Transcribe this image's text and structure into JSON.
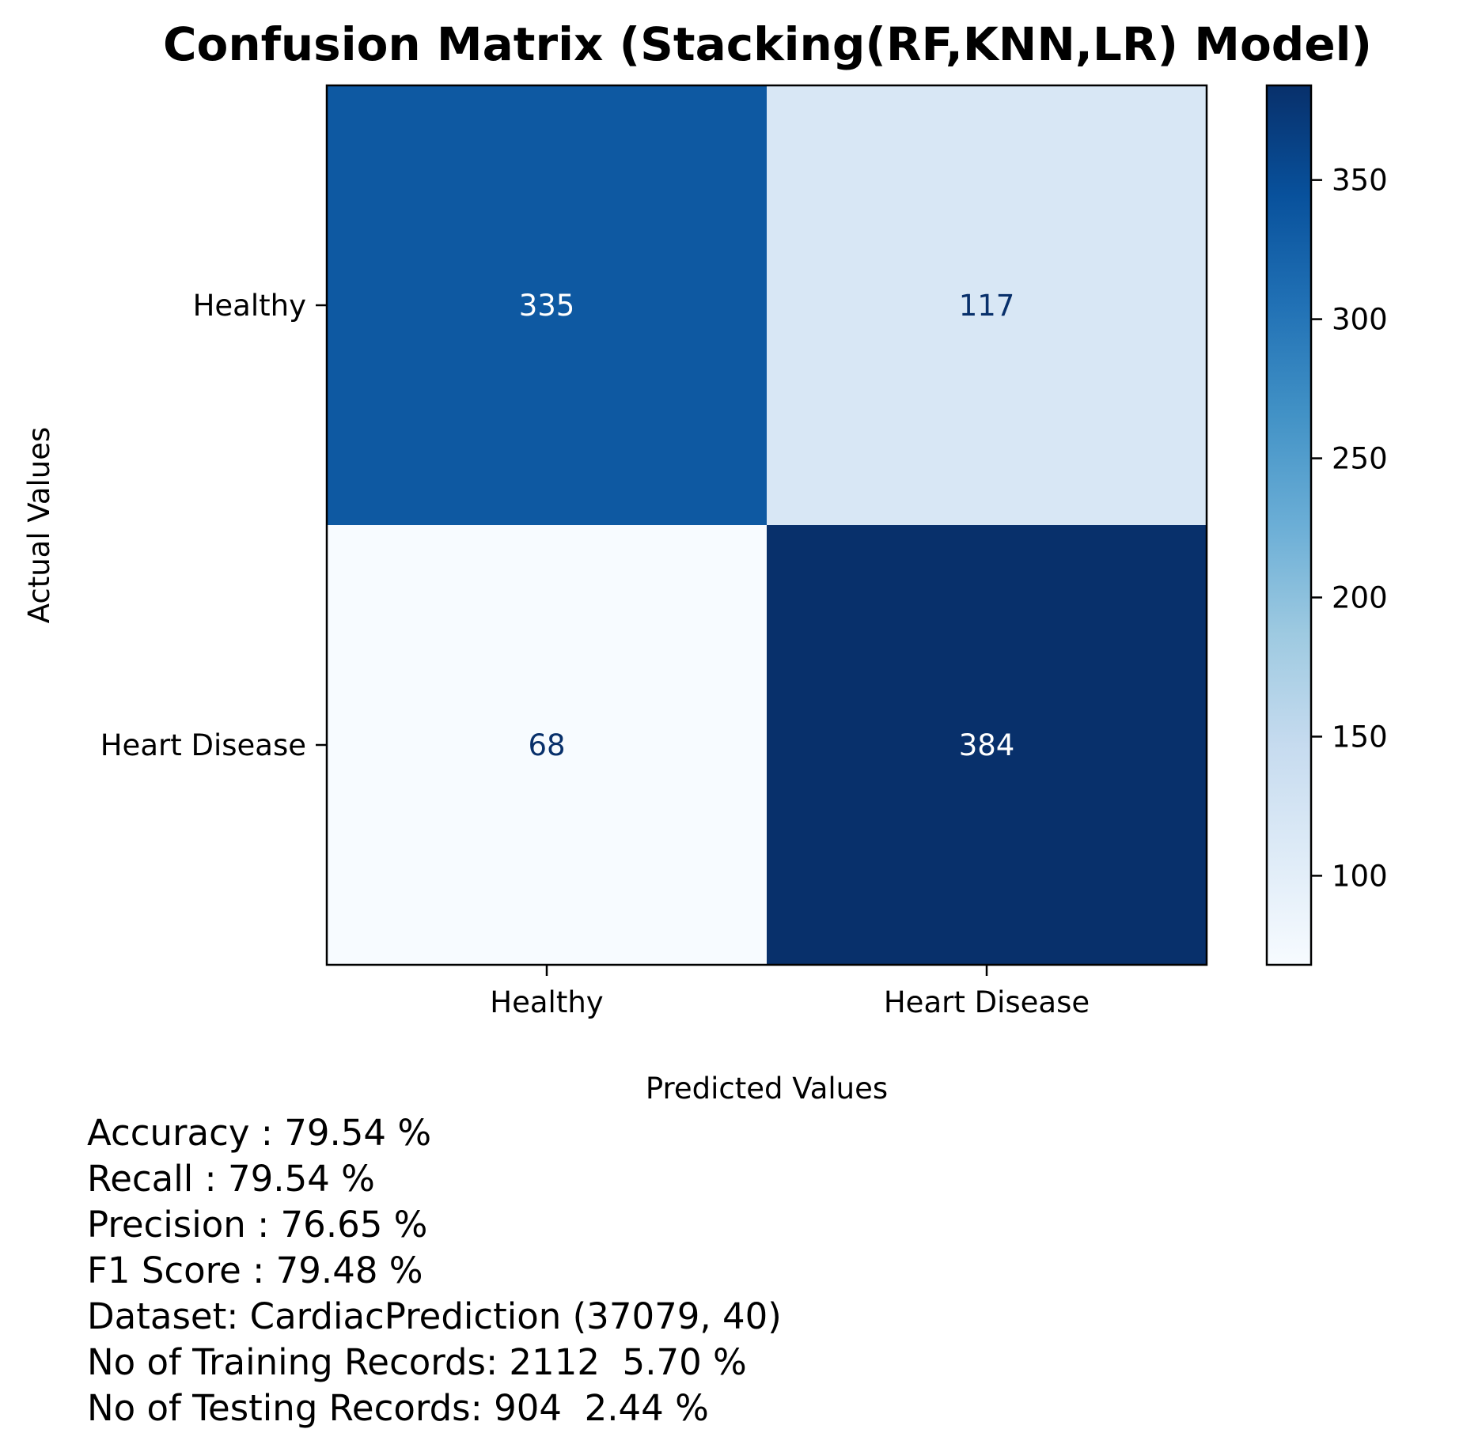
{
  "chart_data": {
    "type": "heatmap",
    "title": "Confusion Matrix (Stacking(RF,KNN,LR) Model)",
    "xlabel": "Predicted Values",
    "ylabel": "Actual Values",
    "x_categories": [
      "Healthy",
      "Heart Disease"
    ],
    "y_categories": [
      "Healthy",
      "Heart Disease"
    ],
    "values": [
      [
        335,
        117
      ],
      [
        68,
        384
      ]
    ],
    "colormap": "Blues",
    "colorbar": {
      "range": [
        68,
        384
      ],
      "ticks": [
        100,
        150,
        200,
        250,
        300,
        350
      ]
    },
    "grid": false
  },
  "stats": [
    "Accuracy : 79.54 %",
    "Recall : 79.54 %",
    "Precision : 76.65 %",
    "F1 Score : 79.48 %",
    "Dataset: CardiacPrediction (37079, 40)",
    "No of Training Records: 2112  5.70 %",
    "No of Testing Records: 904  2.44 %"
  ],
  "colors": {
    "blues_low": "#f7fbff",
    "blues_high": "#08306b",
    "text_dark": "#08306b",
    "text_light": "#ffffff"
  }
}
